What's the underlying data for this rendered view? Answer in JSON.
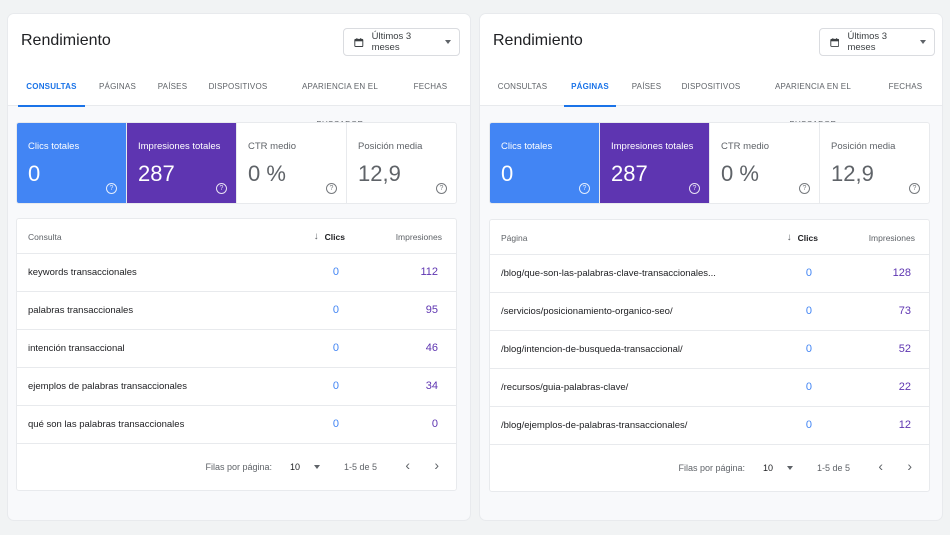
{
  "panels": [
    {
      "title": "Rendimiento",
      "date_range": "Últimos 3 meses",
      "tabs": [
        "CONSULTAS",
        "PÁGINAS",
        "PAÍSES",
        "DISPOSITIVOS",
        "APARIENCIA EN EL BUSCADOR",
        "FECHAS"
      ],
      "active_tab": "CONSULTAS",
      "metrics": [
        {
          "label": "Clics totales",
          "value": "0"
        },
        {
          "label": "Impresiones totales",
          "value": "287"
        },
        {
          "label": "CTR medio",
          "value": "0 %"
        },
        {
          "label": "Posición media",
          "value": "12,9"
        }
      ],
      "table": {
        "col_name": "Consulta",
        "col_clicks": "Clics",
        "col_impr": "Impresiones",
        "rows": [
          {
            "name": "keywords transaccionales",
            "clicks": "0",
            "impr": "112"
          },
          {
            "name": "palabras transaccionales",
            "clicks": "0",
            "impr": "95"
          },
          {
            "name": "intención transaccional",
            "clicks": "0",
            "impr": "46"
          },
          {
            "name": "ejemplos de palabras transaccionales",
            "clicks": "0",
            "impr": "34"
          },
          {
            "name": "qué son las palabras transaccionales",
            "clicks": "0",
            "impr": "0"
          }
        ]
      },
      "pager": {
        "label": "Filas por página:",
        "size": "10",
        "range": "1-5 de 5"
      }
    },
    {
      "title": "Rendimiento",
      "date_range": "Últimos 3 meses",
      "tabs": [
        "CONSULTAS",
        "PÁGINAS",
        "PAÍSES",
        "DISPOSITIVOS",
        "APARIENCIA EN EL BUSCADOR",
        "FECHAS"
      ],
      "active_tab": "PÁGINAS",
      "metrics": [
        {
          "label": "Clics totales",
          "value": "0"
        },
        {
          "label": "Impresiones totales",
          "value": "287"
        },
        {
          "label": "CTR medio",
          "value": "0 %"
        },
        {
          "label": "Posición media",
          "value": "12,9"
        }
      ],
      "table": {
        "col_name": "Página",
        "col_clicks": "Clics",
        "col_impr": "Impresiones",
        "rows": [
          {
            "name": "/blog/que-son-las-palabras-clave-transaccionales...",
            "clicks": "0",
            "impr": "128"
          },
          {
            "name": "/servicios/posicionamiento-organico-seo/",
            "clicks": "0",
            "impr": "73"
          },
          {
            "name": "/blog/intencion-de-busqueda-transaccional/",
            "clicks": "0",
            "impr": "52"
          },
          {
            "name": "/recursos/guia-palabras-clave/",
            "clicks": "0",
            "impr": "22"
          },
          {
            "name": "/blog/ejemplos-de-palabras-transaccionales/",
            "clicks": "0",
            "impr": "12"
          }
        ]
      },
      "pager": {
        "label": "Filas por página:",
        "size": "10",
        "range": "1-5 de 5"
      }
    }
  ],
  "colors": {
    "clicks": "#4285f4",
    "impressions": "#5e35b1",
    "accent": "#1a73e8"
  },
  "icons": {
    "date": "calendar-icon",
    "help": "help-icon",
    "sort": "arrow-down-icon",
    "prev": "chevron-left-icon",
    "next": "chevron-right-icon"
  }
}
